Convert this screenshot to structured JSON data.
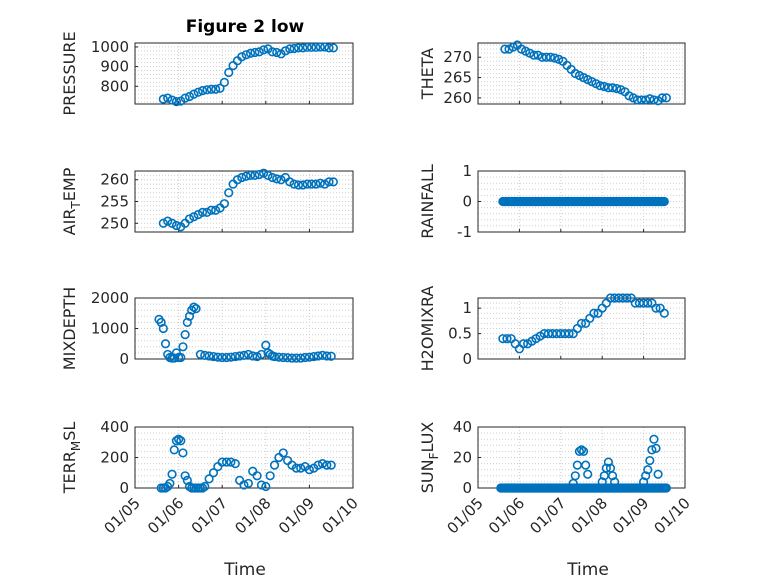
{
  "chart_data": {
    "type": "scatter",
    "title": "Figure 2 low",
    "xlabel": "Time",
    "x_tick_labels": [
      "01/05",
      "01/06",
      "01/07",
      "01/08",
      "01/09",
      "01/10"
    ],
    "x_range_days": [
      5,
      10
    ],
    "color": "#0072bd",
    "subplots": [
      {
        "id": "pressure",
        "ylabel": "PRESSURE",
        "ylim": [
          710,
          1020
        ],
        "yticks": [
          800,
          900,
          1000
        ],
        "x": [
          5.65,
          5.75,
          5.85,
          5.95,
          6.05,
          6.15,
          6.25,
          6.35,
          6.45,
          6.55,
          6.65,
          6.75,
          6.85,
          6.95,
          7.05,
          7.15,
          7.25,
          7.35,
          7.45,
          7.55,
          7.65,
          7.75,
          7.85,
          7.95,
          8.05,
          8.15,
          8.25,
          8.35,
          8.45,
          8.55,
          8.65,
          8.75,
          8.85,
          8.95,
          9.05,
          9.15,
          9.25,
          9.35,
          9.45,
          9.55
        ],
        "y": [
          735,
          740,
          730,
          722,
          725,
          740,
          748,
          760,
          770,
          778,
          782,
          785,
          785,
          790,
          820,
          870,
          905,
          930,
          950,
          960,
          968,
          972,
          975,
          985,
          990,
          975,
          972,
          965,
          980,
          990,
          992,
          995,
          995,
          998,
          998,
          998,
          1000,
          1000,
          995,
          995
        ]
      },
      {
        "id": "theta",
        "ylabel": "THETA",
        "ylim": [
          258.5,
          273.5
        ],
        "yticks": [
          260,
          265,
          270
        ],
        "x": [
          5.65,
          5.75,
          5.85,
          5.95,
          6.05,
          6.15,
          6.25,
          6.35,
          6.45,
          6.55,
          6.65,
          6.75,
          6.85,
          6.95,
          7.05,
          7.15,
          7.25,
          7.35,
          7.45,
          7.55,
          7.65,
          7.75,
          7.85,
          7.95,
          8.05,
          8.15,
          8.25,
          8.35,
          8.45,
          8.55,
          8.65,
          8.75,
          8.85,
          8.95,
          9.05,
          9.15,
          9.25,
          9.35,
          9.45,
          9.55
        ],
        "y": [
          272,
          272,
          272.5,
          273,
          272,
          271.5,
          271,
          270.5,
          270.5,
          270,
          270,
          270,
          269.8,
          269.5,
          269,
          268,
          267,
          266,
          265.5,
          265,
          264.5,
          264,
          263.5,
          263,
          262.8,
          262.5,
          262.5,
          262.3,
          262,
          261.5,
          260.5,
          260,
          259.5,
          259.5,
          259.5,
          259.8,
          259.5,
          259.3,
          260,
          260
        ]
      },
      {
        "id": "air_temp",
        "ylabel": "AIR_TEMP",
        "ylabel_parts": [
          "AIR",
          "T",
          "EMP"
        ],
        "ylim": [
          248,
          262
        ],
        "yticks": [
          250,
          255,
          260
        ],
        "x": [
          5.65,
          5.75,
          5.85,
          5.95,
          6.05,
          6.15,
          6.25,
          6.35,
          6.45,
          6.55,
          6.65,
          6.75,
          6.85,
          6.95,
          7.05,
          7.15,
          7.25,
          7.35,
          7.45,
          7.55,
          7.65,
          7.75,
          7.85,
          7.95,
          8.05,
          8.15,
          8.25,
          8.35,
          8.45,
          8.55,
          8.65,
          8.75,
          8.85,
          8.95,
          9.05,
          9.15,
          9.25,
          9.35,
          9.45,
          9.55
        ],
        "y": [
          250,
          250.5,
          250,
          249.5,
          249.2,
          250,
          251,
          251.5,
          252,
          252.5,
          252.5,
          253,
          253,
          253.5,
          254.5,
          257,
          259,
          260,
          260.5,
          260.8,
          261,
          261,
          261.2,
          261.5,
          261,
          260.5,
          260.2,
          260,
          260.5,
          259.5,
          259,
          258.8,
          258.8,
          259,
          259,
          259,
          259.2,
          259,
          259.5,
          259.5
        ]
      },
      {
        "id": "rainfall",
        "ylabel": "RAINFALL",
        "ylim": [
          -1,
          1
        ],
        "yticks": [
          -1,
          0,
          1
        ],
        "x_start": 5.6,
        "x_end": 9.5,
        "y_const": 0
      },
      {
        "id": "mixdepth",
        "ylabel": "MIXDEPTH",
        "ylim": [
          0,
          2000
        ],
        "yticks": [
          0,
          1000,
          2000
        ],
        "x": [
          5.55,
          5.6,
          5.65,
          5.7,
          5.75,
          5.8,
          5.85,
          5.9,
          5.95,
          6.0,
          6.05,
          6.1,
          6.15,
          6.2,
          6.25,
          6.3,
          6.35,
          6.4,
          6.5,
          6.6,
          6.7,
          6.8,
          6.9,
          7.0,
          7.1,
          7.2,
          7.3,
          7.4,
          7.5,
          7.6,
          7.7,
          7.8,
          7.9,
          8.0,
          8.05,
          8.1,
          8.15,
          8.2,
          8.3,
          8.4,
          8.5,
          8.6,
          8.7,
          8.8,
          8.9,
          9.0,
          9.1,
          9.2,
          9.3,
          9.4,
          9.5
        ],
        "y": [
          1300,
          1200,
          1000,
          500,
          150,
          50,
          30,
          30,
          200,
          50,
          50,
          400,
          800,
          1200,
          1400,
          1600,
          1700,
          1650,
          150,
          120,
          100,
          80,
          60,
          50,
          50,
          60,
          80,
          100,
          120,
          150,
          100,
          80,
          150,
          450,
          200,
          150,
          100,
          80,
          60,
          50,
          40,
          30,
          30,
          30,
          50,
          60,
          80,
          100,
          120,
          100,
          90
        ]
      },
      {
        "id": "h2omixra",
        "ylabel": "H2OMIXRA",
        "ylim": [
          0,
          1.2
        ],
        "yticks": [
          0,
          0.5,
          1
        ],
        "x": [
          5.6,
          5.7,
          5.8,
          5.9,
          6.0,
          6.1,
          6.2,
          6.3,
          6.4,
          6.5,
          6.6,
          6.7,
          6.8,
          6.9,
          7.0,
          7.1,
          7.2,
          7.3,
          7.4,
          7.5,
          7.6,
          7.7,
          7.8,
          7.9,
          8.0,
          8.1,
          8.2,
          8.3,
          8.4,
          8.5,
          8.6,
          8.7,
          8.8,
          8.9,
          9.0,
          9.1,
          9.2,
          9.3,
          9.4,
          9.5
        ],
        "y": [
          0.4,
          0.4,
          0.4,
          0.3,
          0.2,
          0.3,
          0.3,
          0.35,
          0.4,
          0.45,
          0.5,
          0.5,
          0.5,
          0.5,
          0.5,
          0.5,
          0.5,
          0.5,
          0.6,
          0.7,
          0.7,
          0.8,
          0.9,
          0.9,
          1.0,
          1.1,
          1.2,
          1.2,
          1.2,
          1.2,
          1.2,
          1.2,
          1.1,
          1.1,
          1.1,
          1.1,
          1.1,
          1.0,
          1.0,
          0.9
        ]
      },
      {
        "id": "terr_msl",
        "ylabel": "TERR_MSL",
        "ylabel_parts": [
          "TERR",
          "M",
          "SL"
        ],
        "ylim": [
          0,
          400
        ],
        "yticks": [
          0,
          200,
          400
        ],
        "x": [
          5.6,
          5.65,
          5.7,
          5.75,
          5.8,
          5.85,
          5.9,
          5.95,
          6.0,
          6.05,
          6.1,
          6.15,
          6.2,
          6.25,
          6.3,
          6.35,
          6.4,
          6.45,
          6.5,
          6.55,
          6.6,
          6.7,
          6.8,
          6.9,
          7.0,
          7.1,
          7.2,
          7.3,
          7.4,
          7.5,
          7.6,
          7.7,
          7.8,
          7.9,
          8.0,
          8.1,
          8.2,
          8.3,
          8.4,
          8.5,
          8.6,
          8.7,
          8.8,
          8.9,
          9.0,
          9.1,
          9.2,
          9.3,
          9.4,
          9.5
        ],
        "y": [
          0,
          0,
          0,
          10,
          30,
          90,
          250,
          310,
          320,
          310,
          230,
          80,
          50,
          10,
          0,
          0,
          0,
          0,
          0,
          0,
          10,
          60,
          100,
          140,
          170,
          170,
          170,
          160,
          50,
          20,
          30,
          110,
          80,
          20,
          10,
          80,
          150,
          200,
          230,
          180,
          150,
          130,
          130,
          140,
          120,
          130,
          150,
          160,
          150,
          150
        ]
      },
      {
        "id": "sun_flux",
        "ylabel": "SUN_FLUX",
        "ylabel_parts": [
          "SUN",
          "F",
          "LUX"
        ],
        "ylim": [
          0,
          40
        ],
        "yticks": [
          0,
          20,
          40
        ],
        "x": [
          7.3,
          7.35,
          7.4,
          7.45,
          7.5,
          7.55,
          7.6,
          7.65,
          8.0,
          8.05,
          8.1,
          8.15,
          8.2,
          8.25,
          8.3,
          9.0,
          9.05,
          9.1,
          9.15,
          9.2,
          9.25,
          9.3,
          9.35
        ],
        "y": [
          3,
          8,
          15,
          24,
          25,
          24,
          15,
          9,
          4,
          8,
          13,
          17,
          13,
          8,
          4,
          4,
          8,
          12,
          18,
          25,
          32,
          26,
          9
        ],
        "zero_x_start": 5.55,
        "zero_x_end": 9.55
      }
    ]
  }
}
